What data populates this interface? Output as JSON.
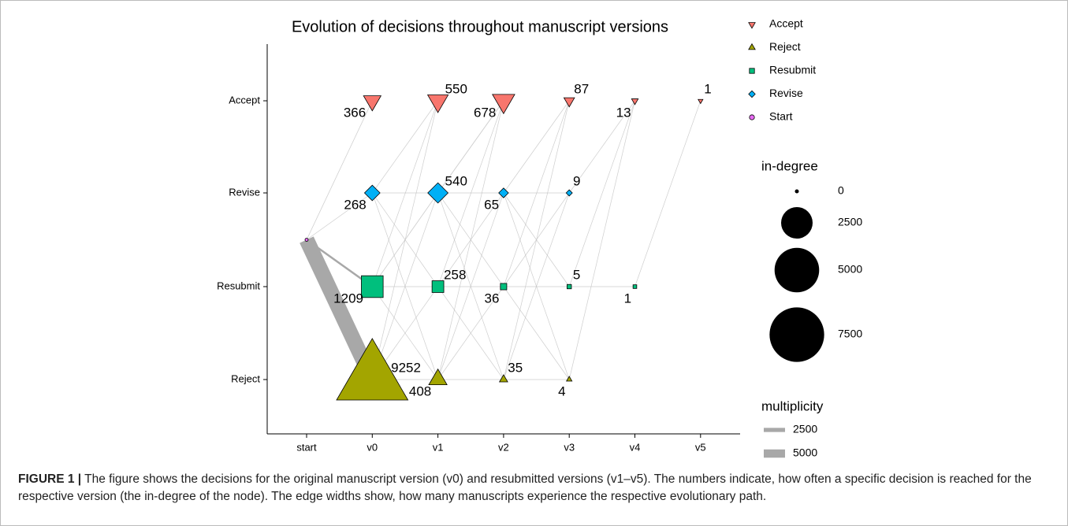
{
  "chart_data": {
    "type": "network",
    "title": "Evolution of decisions throughout manuscript versions",
    "x_categories": [
      "start",
      "v0",
      "v1",
      "v2",
      "v3",
      "v4",
      "v5"
    ],
    "y_categories": [
      "Accept",
      "Revise",
      "Resubmit",
      "Reject"
    ],
    "series": [
      {
        "name": "Accept",
        "color": "#F8766D",
        "shape": "triangle-down"
      },
      {
        "name": "Reject",
        "color": "#A3A500",
        "shape": "triangle-up"
      },
      {
        "name": "Resubmit",
        "color": "#00BF7D",
        "shape": "square"
      },
      {
        "name": "Revise",
        "color": "#00B0F6",
        "shape": "diamond"
      },
      {
        "name": "Start",
        "color": "#E76BF3",
        "shape": "circle"
      }
    ],
    "nodes": [
      {
        "x": "start",
        "y": null,
        "value": 0
      },
      {
        "x": "v0",
        "y": "Accept",
        "value": 366
      },
      {
        "x": "v1",
        "y": "Accept",
        "value": 550
      },
      {
        "x": "v2",
        "y": "Accept",
        "value": 678
      },
      {
        "x": "v3",
        "y": "Accept",
        "value": 87
      },
      {
        "x": "v4",
        "y": "Accept",
        "value": 13
      },
      {
        "x": "v5",
        "y": "Accept",
        "value": 1
      },
      {
        "x": "v0",
        "y": "Revise",
        "value": 268
      },
      {
        "x": "v1",
        "y": "Revise",
        "value": 540
      },
      {
        "x": "v2",
        "y": "Revise",
        "value": 65
      },
      {
        "x": "v3",
        "y": "Revise",
        "value": 9
      },
      {
        "x": "v0",
        "y": "Resubmit",
        "value": 1209
      },
      {
        "x": "v1",
        "y": "Resubmit",
        "value": 258
      },
      {
        "x": "v2",
        "y": "Resubmit",
        "value": 36
      },
      {
        "x": "v3",
        "y": "Resubmit",
        "value": 5
      },
      {
        "x": "v4",
        "y": "Resubmit",
        "value": 1
      },
      {
        "x": "v0",
        "y": "Reject",
        "value": 9252
      },
      {
        "x": "v1",
        "y": "Reject",
        "value": 408
      },
      {
        "x": "v2",
        "y": "Reject",
        "value": 35
      },
      {
        "x": "v3",
        "y": "Reject",
        "value": 4
      }
    ],
    "edges": [
      {
        "from": 0,
        "to": 1,
        "multiplicity": 366
      },
      {
        "from": 0,
        "to": 7,
        "multiplicity": 268
      },
      {
        "from": 0,
        "to": 11,
        "multiplicity": 1209
      },
      {
        "from": 0,
        "to": 16,
        "multiplicity": 9252
      },
      {
        "from": 7,
        "to": 2,
        "multiplicity": 150
      },
      {
        "from": 7,
        "to": 8,
        "multiplicity": 60
      },
      {
        "from": 7,
        "to": 12,
        "multiplicity": 30
      },
      {
        "from": 7,
        "to": 17,
        "multiplicity": 28
      },
      {
        "from": 11,
        "to": 2,
        "multiplicity": 300
      },
      {
        "from": 11,
        "to": 8,
        "multiplicity": 400
      },
      {
        "from": 11,
        "to": 12,
        "multiplicity": 150
      },
      {
        "from": 11,
        "to": 17,
        "multiplicity": 300
      },
      {
        "from": 16,
        "to": 2,
        "multiplicity": 100
      },
      {
        "from": 16,
        "to": 8,
        "multiplicity": 80
      },
      {
        "from": 16,
        "to": 12,
        "multiplicity": 78
      },
      {
        "from": 16,
        "to": 17,
        "multiplicity": 80
      },
      {
        "from": 8,
        "to": 3,
        "multiplicity": 450
      },
      {
        "from": 8,
        "to": 9,
        "multiplicity": 40
      },
      {
        "from": 8,
        "to": 13,
        "multiplicity": 20
      },
      {
        "from": 8,
        "to": 18,
        "multiplicity": 20
      },
      {
        "from": 12,
        "to": 3,
        "multiplicity": 200
      },
      {
        "from": 12,
        "to": 9,
        "multiplicity": 20
      },
      {
        "from": 12,
        "to": 13,
        "multiplicity": 14
      },
      {
        "from": 12,
        "to": 18,
        "multiplicity": 13
      },
      {
        "from": 17,
        "to": 3,
        "multiplicity": 28
      },
      {
        "from": 17,
        "to": 9,
        "multiplicity": 5
      },
      {
        "from": 17,
        "to": 13,
        "multiplicity": 2
      },
      {
        "from": 17,
        "to": 18,
        "multiplicity": 2
      },
      {
        "from": 9,
        "to": 4,
        "multiplicity": 50
      },
      {
        "from": 9,
        "to": 10,
        "multiplicity": 5
      },
      {
        "from": 9,
        "to": 14,
        "multiplicity": 3
      },
      {
        "from": 9,
        "to": 19,
        "multiplicity": 2
      },
      {
        "from": 13,
        "to": 4,
        "multiplicity": 30
      },
      {
        "from": 13,
        "to": 10,
        "multiplicity": 3
      },
      {
        "from": 13,
        "to": 14,
        "multiplicity": 2
      },
      {
        "from": 13,
        "to": 19,
        "multiplicity": 1
      },
      {
        "from": 18,
        "to": 4,
        "multiplicity": 7
      },
      {
        "from": 18,
        "to": 10,
        "multiplicity": 1
      },
      {
        "from": 18,
        "to": 19,
        "multiplicity": 1
      },
      {
        "from": 10,
        "to": 5,
        "multiplicity": 8
      },
      {
        "from": 14,
        "to": 5,
        "multiplicity": 4
      },
      {
        "from": 14,
        "to": 15,
        "multiplicity": 1
      },
      {
        "from": 19,
        "to": 5,
        "multiplicity": 1
      },
      {
        "from": 15,
        "to": 6,
        "multiplicity": 1
      }
    ],
    "size_legend": {
      "title": "in-degree",
      "values": [
        0,
        2500,
        5000,
        7500
      ]
    },
    "width_legend": {
      "title": "multiplicity",
      "values": [
        2500,
        5000
      ]
    },
    "caption": {
      "label": "FIGURE 1 |",
      "text": "The figure shows the decisions for the original manuscript version (v0) and resubmitted versions (v1–v5). The numbers indicate, how often a specific decision is reached for the respective version (the in-degree of the node). The edge widths show, how many manuscripts experience the respective evolutionary path."
    }
  }
}
